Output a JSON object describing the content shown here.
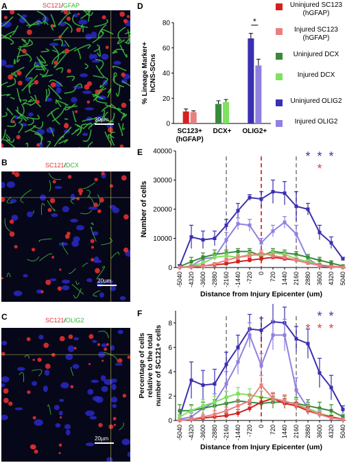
{
  "panels": {
    "A": {
      "letter": "A",
      "stain1": "SC121",
      "sep": "/",
      "stain2": "GFAP",
      "scalebar": "20µm"
    },
    "B": {
      "letter": "B",
      "stain1": "SC121",
      "sep": "/",
      "stain2": "DCX",
      "scalebar": "20µm"
    },
    "C": {
      "letter": "C",
      "stain1": "SC121",
      "sep": "/",
      "stain2": "OLIG2",
      "scalebar": "20µm"
    },
    "D": {
      "letter": "D"
    },
    "E": {
      "letter": "E"
    },
    "F": {
      "letter": "F"
    }
  },
  "legend": [
    {
      "label": "Uninjured SC123 (hGFAP)",
      "color": "#d42020"
    },
    {
      "label": "Injured SC123 (hGFAP)",
      "color": "#e88080"
    },
    {
      "label": "Uninjured DCX",
      "color": "#3a8a3a"
    },
    {
      "label": "Injured DCX",
      "color": "#80e060"
    },
    {
      "label": "Uninjured OLIG2",
      "color": "#3a2fb0"
    },
    {
      "label": "Injured OLIG2",
      "color": "#9080e0"
    }
  ],
  "chart_data": [
    {
      "panel": "D",
      "type": "bar",
      "ylabel": "% Lineage Marker+ hCNS-SCns",
      "ylim": [
        0,
        80
      ],
      "yticks": [
        0,
        20,
        40,
        60,
        80
      ],
      "categories": [
        "SC123+ (hGFAP)",
        "DCX+",
        "OLIG2+"
      ],
      "series": [
        {
          "name": "Uninjured",
          "values": [
            9.5,
            15.5,
            67.5
          ],
          "errors": [
            2,
            2.5,
            4
          ]
        },
        {
          "name": "Injured",
          "values": [
            9,
            17,
            46
          ],
          "errors": [
            1,
            2,
            5
          ]
        }
      ],
      "colors": [
        [
          "#d42020",
          "#e88080"
        ],
        [
          "#3a8a3a",
          "#80e060"
        ],
        [
          "#3a2fb0",
          "#9080e0"
        ]
      ],
      "annotations": [
        "*"
      ]
    },
    {
      "panel": "E",
      "type": "line",
      "ylabel": "Number of cells",
      "xlabel": "Distance from Injury Epicenter (um)",
      "ylim": [
        0,
        40000
      ],
      "yticks": [
        0,
        10000,
        20000,
        30000,
        40000
      ],
      "x": [
        -5040,
        -4320,
        -3600,
        -2880,
        -2160,
        -1440,
        -720,
        0,
        720,
        1440,
        2160,
        2880,
        3600,
        4320,
        5040
      ],
      "vlines": [
        {
          "x": -2160,
          "color": "#999999"
        },
        {
          "x": 0,
          "color": "#e04040"
        },
        {
          "x": 2160,
          "color": "#999999"
        }
      ],
      "series": [
        {
          "name": "Uninjured OLIG2",
          "color": "#3a2fb0",
          "values": [
            500,
            10500,
            9500,
            10000,
            14500,
            19500,
            24000,
            23500,
            26000,
            25500,
            21000,
            20000,
            12000,
            8500,
            3000
          ],
          "errors": [
            500,
            4000,
            3000,
            2500,
            2000,
            2500,
            1000,
            2500,
            4000,
            4000,
            5000,
            2000,
            2500,
            2000,
            500
          ]
        },
        {
          "name": "Injured OLIG2",
          "color": "#9080e0",
          "values": [
            0,
            500,
            3000,
            3500,
            9500,
            15000,
            14500,
            8500,
            12500,
            15500,
            11500,
            3000,
            500,
            200,
            0
          ],
          "errors": [
            0,
            500,
            1000,
            1000,
            2500,
            2000,
            2000,
            1500,
            2000,
            2000,
            3000,
            1000,
            500,
            200,
            0
          ]
        },
        {
          "name": "Uninjured DCX",
          "color": "#3a8a3a",
          "values": [
            300,
            2000,
            3500,
            4500,
            5000,
            5500,
            5500,
            4000,
            5500,
            5000,
            4500,
            3500,
            2500,
            1500,
            500
          ],
          "errors": [
            300,
            1500,
            1500,
            1500,
            1000,
            1000,
            1000,
            1000,
            1000,
            1000,
            1000,
            1000,
            1000,
            800,
            300
          ]
        },
        {
          "name": "Injured DCX",
          "color": "#80e060",
          "values": [
            0,
            500,
            1500,
            3500,
            4000,
            3500,
            4500,
            4000,
            5000,
            4500,
            3000,
            2000,
            1000,
            300,
            0
          ],
          "errors": [
            0,
            300,
            800,
            1000,
            1000,
            1000,
            1000,
            1000,
            1000,
            1000,
            1000,
            800,
            500,
            300,
            0
          ]
        },
        {
          "name": "Uninjured SC123 (hGFAP)",
          "color": "#d42020",
          "values": [
            0,
            300,
            600,
            900,
            1300,
            2000,
            2500,
            3000,
            3500,
            3000,
            2500,
            1500,
            800,
            400,
            100
          ],
          "errors": [
            0,
            200,
            300,
            400,
            500,
            600,
            700,
            700,
            700,
            700,
            600,
            500,
            400,
            300,
            100
          ]
        },
        {
          "name": "Injured SC123 (hGFAP)",
          "color": "#e88080",
          "values": [
            0,
            200,
            500,
            1200,
            2500,
            3500,
            4000,
            5000,
            4000,
            3500,
            2500,
            1500,
            700,
            300,
            100
          ],
          "errors": [
            0,
            200,
            300,
            500,
            700,
            800,
            900,
            1000,
            900,
            800,
            700,
            500,
            400,
            300,
            100
          ]
        }
      ],
      "sig_stars": [
        {
          "color": "#3a2fb0",
          "x": [
            2880,
            3600,
            4320
          ]
        },
        {
          "color": "#e04040",
          "x": [
            3600
          ]
        }
      ]
    },
    {
      "panel": "F",
      "type": "line",
      "ylabel": "Percentage of cells relative to the total number of SC121+ cells",
      "xlabel": "Distance from Injury Epicenter (um)",
      "ylim": [
        0,
        9
      ],
      "yticks": [
        0,
        2,
        4,
        6,
        8
      ],
      "x": [
        -5040,
        -4320,
        -3600,
        -2880,
        -2160,
        -1440,
        -720,
        0,
        720,
        1440,
        2160,
        2880,
        3600,
        4320,
        5040
      ],
      "vlines": [
        {
          "x": -2160,
          "color": "#999999"
        },
        {
          "x": 0,
          "color": "#e04040"
        },
        {
          "x": 2160,
          "color": "#999999"
        }
      ],
      "series": [
        {
          "name": "Uninjured OLIG2",
          "color": "#3a2fb0",
          "values": [
            0.3,
            3.3,
            2.9,
            3.0,
            4.6,
            6.0,
            7.5,
            7.4,
            8.1,
            8.0,
            6.7,
            6.3,
            3.9,
            2.7,
            0.9
          ],
          "errors": [
            0.2,
            1.5,
            1.2,
            1.2,
            1.0,
            1.0,
            1.2,
            1.0,
            1.5,
            1.3,
            1.0,
            1.2,
            1.2,
            1.0,
            0.3
          ]
        },
        {
          "name": "Injured OLIG2",
          "color": "#9080e0",
          "values": [
            0.1,
            0.3,
            1.0,
            1.5,
            3.0,
            4.8,
            7.0,
            4.5,
            7.0,
            7.0,
            2.5,
            1.0,
            0.5,
            0.2,
            0.1
          ],
          "errors": [
            0.1,
            0.3,
            0.5,
            0.7,
            1.0,
            1.0,
            1.0,
            1.0,
            1.2,
            1.3,
            1.0,
            0.5,
            0.3,
            0.2,
            0.1
          ]
        },
        {
          "name": "Uninjured DCX",
          "color": "#3a8a3a",
          "values": [
            0.8,
            0.8,
            1.0,
            1.2,
            1.4,
            1.6,
            1.5,
            1.4,
            1.5,
            1.5,
            1.4,
            1.2,
            1.0,
            0.8,
            0.3
          ],
          "errors": [
            0.5,
            0.5,
            0.5,
            0.5,
            0.5,
            0.5,
            0.5,
            0.5,
            0.5,
            0.5,
            0.5,
            0.5,
            0.5,
            0.5,
            0.2
          ]
        },
        {
          "name": "Injured DCX",
          "color": "#80e060",
          "values": [
            0.3,
            0.8,
            1.2,
            1.5,
            1.9,
            2.2,
            2.1,
            1.9,
            1.8,
            1.6,
            1.3,
            1.0,
            0.6,
            0.3,
            0.1
          ],
          "errors": [
            0.2,
            0.4,
            0.5,
            0.5,
            0.5,
            0.5,
            0.5,
            0.5,
            0.5,
            0.5,
            0.5,
            0.4,
            0.3,
            0.2,
            0.1
          ]
        },
        {
          "name": "Uninjured SC123 (hGFAP)",
          "color": "#d42020",
          "values": [
            0.0,
            0.1,
            0.2,
            0.3,
            0.4,
            0.6,
            1.0,
            1.5,
            1.8,
            1.4,
            1.2,
            0.8,
            0.5,
            0.3,
            0.1
          ],
          "errors": [
            0.0,
            0.1,
            0.1,
            0.2,
            0.2,
            0.3,
            0.3,
            0.4,
            0.4,
            0.4,
            0.3,
            0.3,
            0.2,
            0.1,
            0.1
          ]
        },
        {
          "name": "Injured SC123 (hGFAP)",
          "color": "#e88080",
          "values": [
            0.0,
            0.1,
            0.3,
            0.5,
            0.8,
            1.2,
            1.6,
            2.9,
            1.8,
            1.6,
            1.3,
            0.9,
            0.5,
            0.2,
            0.1
          ],
          "errors": [
            0.0,
            0.1,
            0.2,
            0.3,
            0.3,
            0.4,
            0.5,
            0.8,
            0.5,
            0.5,
            0.4,
            0.3,
            0.2,
            0.1,
            0.1
          ]
        }
      ],
      "sig_stars": [
        {
          "color": "#3a2fb0",
          "x": [
            3600,
            4320
          ]
        },
        {
          "color": "#e04040",
          "x": [
            2880,
            3600,
            4320
          ]
        }
      ]
    }
  ]
}
